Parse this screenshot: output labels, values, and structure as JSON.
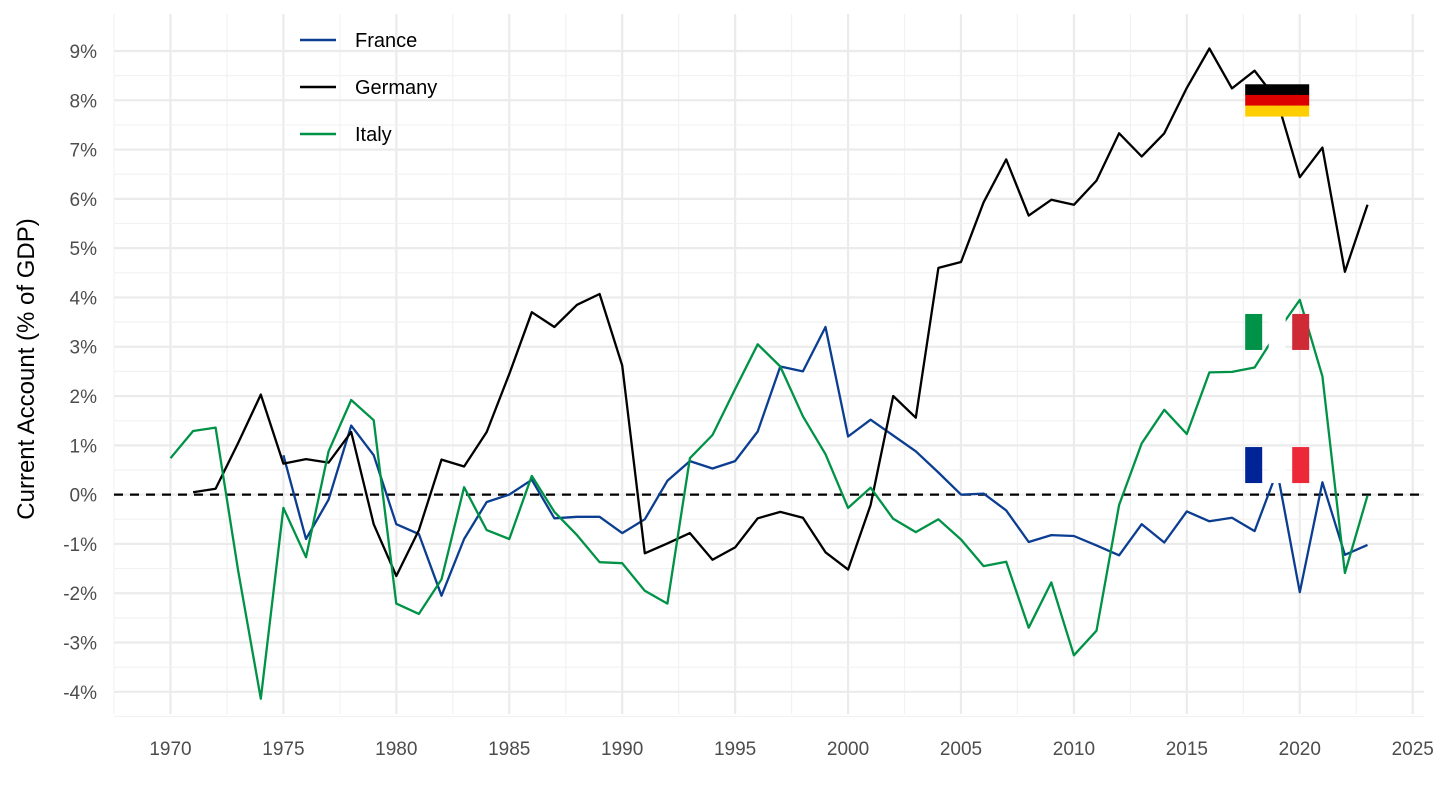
{
  "chart_data": {
    "type": "line",
    "title": "",
    "xlabel": "",
    "ylabel": "Current Account (% of GDP)",
    "xlim": [
      1967.5,
      2025.5
    ],
    "ylim": [
      -4.45,
      9.75
    ],
    "x_ticks": [
      1970,
      1975,
      1980,
      1985,
      1990,
      1995,
      2000,
      2005,
      2010,
      2015,
      2020,
      2025
    ],
    "x_tick_labels": [
      "1970",
      "1975",
      "1980",
      "1985",
      "1990",
      "1995",
      "2000",
      "2005",
      "2010",
      "2015",
      "2020",
      "2025"
    ],
    "y_ticks": [
      -4,
      -3,
      -2,
      -1,
      0,
      1,
      2,
      3,
      4,
      5,
      6,
      7,
      8,
      9
    ],
    "y_tick_labels": [
      "-4%",
      "-3%",
      "-2%",
      "-1%",
      "0%",
      "1%",
      "2%",
      "3%",
      "4%",
      "5%",
      "6%",
      "7%",
      "8%",
      "9%"
    ],
    "grid": true,
    "reference_line": {
      "y": 0,
      "style": "dashed",
      "color": "#000000"
    },
    "legend": {
      "position": "top-left"
    },
    "series": [
      {
        "name": "France",
        "color": "#0b3d91",
        "x": [
          1975,
          1976,
          1977,
          1978,
          1979,
          1980,
          1981,
          1982,
          1983,
          1984,
          1985,
          1986,
          1987,
          1988,
          1989,
          1990,
          1991,
          1992,
          1993,
          1994,
          1995,
          1996,
          1997,
          1998,
          1999,
          2000,
          2001,
          2002,
          2003,
          2004,
          2005,
          2006,
          2007,
          2008,
          2009,
          2010,
          2011,
          2012,
          2013,
          2014,
          2015,
          2016,
          2017,
          2018,
          2019,
          2020,
          2021,
          2022,
          2023
        ],
        "values": [
          0.8,
          -0.9,
          -0.1,
          1.4,
          0.8,
          -0.6,
          -0.8,
          -2.05,
          -0.9,
          -0.15,
          0.0,
          0.3,
          -0.48,
          -0.45,
          -0.45,
          -0.78,
          -0.5,
          0.28,
          0.68,
          0.53,
          0.68,
          1.28,
          2.6,
          2.5,
          3.4,
          1.18,
          1.52,
          1.2,
          0.88,
          0.45,
          0.0,
          0.02,
          -0.32,
          -0.96,
          -0.82,
          -0.84,
          -1.03,
          -1.23,
          -0.6,
          -0.97,
          -0.34,
          -0.54,
          -0.47,
          -0.74,
          0.48,
          -1.98,
          0.25,
          -1.22,
          -1.02
        ]
      },
      {
        "name": "Germany",
        "color": "#000000",
        "x": [
          1971,
          1972,
          1973,
          1974,
          1975,
          1976,
          1977,
          1978,
          1979,
          1980,
          1981,
          1982,
          1983,
          1984,
          1985,
          1986,
          1987,
          1988,
          1989,
          1990,
          1991,
          1992,
          1993,
          1994,
          1995,
          1996,
          1997,
          1998,
          1999,
          2000,
          2001,
          2002,
          2003,
          2004,
          2005,
          2006,
          2007,
          2008,
          2009,
          2010,
          2011,
          2012,
          2013,
          2014,
          2015,
          2016,
          2017,
          2018,
          2019,
          2020,
          2021,
          2022,
          2023
        ],
        "values": [
          0.05,
          0.12,
          1.05,
          2.03,
          0.63,
          0.72,
          0.65,
          1.27,
          -0.6,
          -1.65,
          -0.72,
          0.71,
          0.57,
          1.27,
          2.45,
          3.7,
          3.4,
          3.85,
          4.07,
          2.62,
          -1.19,
          -0.99,
          -0.78,
          -1.32,
          -1.07,
          -0.48,
          -0.35,
          -0.47,
          -1.17,
          -1.52,
          -0.21,
          2.0,
          1.56,
          4.6,
          4.72,
          5.93,
          6.8,
          5.66,
          5.98,
          5.88,
          6.37,
          7.33,
          6.86,
          7.33,
          8.25,
          9.05,
          8.24,
          8.6,
          8.0,
          6.44,
          7.04,
          4.52,
          5.88
        ]
      },
      {
        "name": "Italy",
        "color": "#009246",
        "x": [
          1970,
          1971,
          1972,
          1973,
          1974,
          1975,
          1976,
          1977,
          1978,
          1979,
          1980,
          1981,
          1982,
          1983,
          1984,
          1985,
          1986,
          1987,
          1988,
          1989,
          1990,
          1991,
          1992,
          1993,
          1994,
          1995,
          1996,
          1997,
          1998,
          1999,
          2000,
          2001,
          2002,
          2003,
          2004,
          2005,
          2006,
          2007,
          2008,
          2009,
          2010,
          2011,
          2012,
          2013,
          2014,
          2015,
          2016,
          2017,
          2018,
          2019,
          2020,
          2021,
          2022,
          2023
        ],
        "values": [
          0.74,
          1.29,
          1.36,
          -1.55,
          -4.14,
          -0.27,
          -1.27,
          0.88,
          1.92,
          1.51,
          -2.21,
          -2.42,
          -1.72,
          0.15,
          -0.72,
          -0.9,
          0.38,
          -0.35,
          -0.82,
          -1.37,
          -1.39,
          -1.95,
          -2.21,
          0.74,
          1.21,
          2.14,
          3.05,
          2.6,
          1.59,
          0.82,
          -0.27,
          0.14,
          -0.49,
          -0.76,
          -0.5,
          -0.91,
          -1.45,
          -1.36,
          -2.7,
          -1.78,
          -3.26,
          -2.76,
          -0.21,
          1.04,
          1.72,
          1.23,
          2.48,
          2.49,
          2.58,
          3.3,
          3.95,
          2.4,
          -1.59,
          -0.02
        ]
      }
    ],
    "flags": [
      {
        "country": "Germany",
        "x": 2019,
        "y": 8.0,
        "colors": [
          "#000000",
          "#dd0000",
          "#ffce00"
        ],
        "orientation": "horizontal"
      },
      {
        "country": "Italy",
        "x": 2019,
        "y": 3.3,
        "colors": [
          "#009246",
          "#ffffff",
          "#ce2b37"
        ],
        "orientation": "vertical"
      },
      {
        "country": "France",
        "x": 2019,
        "y": 0.6,
        "colors": [
          "#002395",
          "#ffffff",
          "#ed2939"
        ],
        "orientation": "vertical"
      }
    ]
  }
}
